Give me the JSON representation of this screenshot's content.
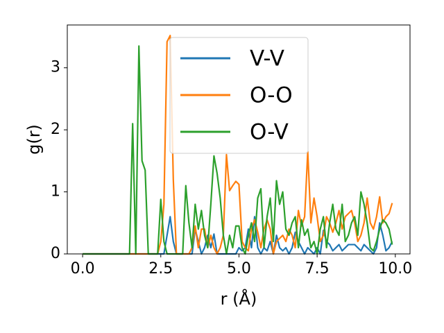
{
  "chart_data": {
    "type": "line",
    "xlabel": "r (Å)",
    "ylabel": "g(r)",
    "x": [
      0,
      0.1,
      0.2,
      0.3,
      0.4,
      0.5,
      0.6,
      0.7,
      0.8,
      0.9,
      1,
      1.1,
      1.2,
      1.3,
      1.4,
      1.5,
      1.6,
      1.7,
      1.8,
      1.9,
      2,
      2.1,
      2.2,
      2.3,
      2.4,
      2.5,
      2.6,
      2.7,
      2.8,
      2.9,
      3,
      3.1,
      3.2,
      3.3,
      3.4,
      3.5,
      3.6,
      3.7,
      3.8,
      3.9,
      4,
      4.1,
      4.2,
      4.3,
      4.4,
      4.5,
      4.6,
      4.7,
      4.8,
      4.9,
      5,
      5.1,
      5.2,
      5.3,
      5.4,
      5.5,
      5.6,
      5.7,
      5.8,
      5.9,
      6,
      6.1,
      6.2,
      6.3,
      6.4,
      6.5,
      6.6,
      6.7,
      6.8,
      6.9,
      7,
      7.1,
      7.2,
      7.3,
      7.4,
      7.5,
      7.6,
      7.7,
      7.8,
      7.9,
      8,
      8.1,
      8.2,
      8.3,
      8.4,
      8.5,
      8.6,
      8.7,
      8.8,
      8.9,
      9,
      9.1,
      9.2,
      9.3,
      9.4,
      9.5,
      9.6,
      9.7,
      9.8,
      9.9
    ],
    "series": [
      {
        "name": "V-V",
        "color": "#1f77b4",
        "values": [
          0,
          0,
          0,
          0,
          0,
          0,
          0,
          0,
          0,
          0,
          0,
          0,
          0,
          0,
          0,
          0,
          0,
          0,
          0,
          0,
          0,
          0,
          0,
          0,
          0,
          0,
          0,
          0.3,
          0.6,
          0.2,
          0,
          0,
          0,
          0,
          0,
          0,
          0.4,
          0.2,
          0,
          0.1,
          0.3,
          0.1,
          0.32,
          0,
          0,
          0,
          0,
          0,
          0,
          0,
          0.1,
          0.05,
          0.1,
          0.4,
          0.1,
          0.6,
          0.1,
          0,
          0.1,
          0.05,
          0.2,
          0,
          0.3,
          0.1,
          0.05,
          0.1,
          0,
          0.1,
          0.35,
          0.2,
          0.1,
          0,
          0.1,
          0.05,
          0,
          0.1,
          0,
          0.38,
          0.2,
          0.15,
          0.05,
          0.1,
          0.15,
          0.05,
          0.1,
          0.15,
          0.15,
          0.15,
          0.1,
          0.05,
          0.15,
          0.1,
          0.05,
          0,
          0.1,
          0.5,
          0.3,
          0.05,
          0.1,
          0.2
        ]
      },
      {
        "name": "O-O",
        "color": "#ff7f0e",
        "values": [
          0,
          0,
          0,
          0,
          0,
          0,
          0,
          0,
          0,
          0,
          0,
          0,
          0,
          0,
          0,
          0,
          0,
          0,
          0,
          0,
          0,
          0,
          0,
          0,
          0,
          0.2,
          0.8,
          3.42,
          3.52,
          1.2,
          0,
          0,
          0,
          0,
          0,
          0.1,
          0.45,
          0.1,
          0.4,
          0.4,
          0.1,
          0.3,
          0.1,
          0,
          0.1,
          0.3,
          1.6,
          1.02,
          1.1,
          1.17,
          1.12,
          0.2,
          0.1,
          0.05,
          0.4,
          0.55,
          0.35,
          0.1,
          0.4,
          0.55,
          0.4,
          0,
          0.2,
          0.25,
          0.3,
          0.2,
          0.4,
          0.3,
          0.1,
          0.7,
          0.45,
          0.6,
          1.65,
          0.5,
          0.9,
          0.6,
          0.2,
          0.3,
          0.6,
          0.5,
          0.35,
          0.5,
          0.7,
          0.4,
          0.6,
          0.65,
          0.7,
          0.5,
          0.2,
          0.3,
          0.5,
          0.9,
          0.5,
          0.4,
          0.6,
          0.92,
          0.5,
          0.6,
          0.65,
          0.82
        ]
      },
      {
        "name": "O-V",
        "color": "#2ca02c",
        "values": [
          0,
          0,
          0,
          0,
          0,
          0,
          0,
          0,
          0,
          0,
          0,
          0,
          0,
          0,
          0,
          0,
          2.1,
          0,
          3.35,
          1.5,
          1.35,
          0,
          0,
          0,
          0,
          0.88,
          0.2,
          0,
          0,
          0,
          0,
          0,
          0,
          1.1,
          0.5,
          0.1,
          0.8,
          0.4,
          0.7,
          0.3,
          0.1,
          0.8,
          1.58,
          1.3,
          0.9,
          0.3,
          0,
          0.3,
          0.1,
          0.45,
          0.45,
          0.1,
          0,
          0.3,
          0.5,
          0.2,
          0.9,
          1.05,
          0.1,
          0.6,
          0.9,
          0.2,
          1.18,
          0.8,
          1,
          0.4,
          0.3,
          0.5,
          0.6,
          0.1,
          0.55,
          0.3,
          0.4,
          0.1,
          0.2,
          0,
          0.4,
          0.6,
          0.1,
          0.5,
          0.8,
          0.4,
          0.3,
          0.8,
          0.2,
          0.3,
          0.5,
          0.6,
          0.3,
          1,
          0.8,
          0.5,
          0.1,
          0.05,
          0.2,
          0.4,
          0.55,
          0.5,
          0.4,
          0.15
        ]
      }
    ],
    "xlim": [
      -0.49,
      10.47
    ],
    "ylim": [
      0,
      3.69
    ],
    "xticks": [
      {
        "value": 0,
        "label": "0.0"
      },
      {
        "value": 2.5,
        "label": "2.5"
      },
      {
        "value": 5,
        "label": "5.0"
      },
      {
        "value": 7.5,
        "label": "7.5"
      },
      {
        "value": 10,
        "label": "10.0"
      }
    ],
    "yticks": [
      0,
      1,
      2,
      3
    ],
    "legend": "upper center"
  }
}
